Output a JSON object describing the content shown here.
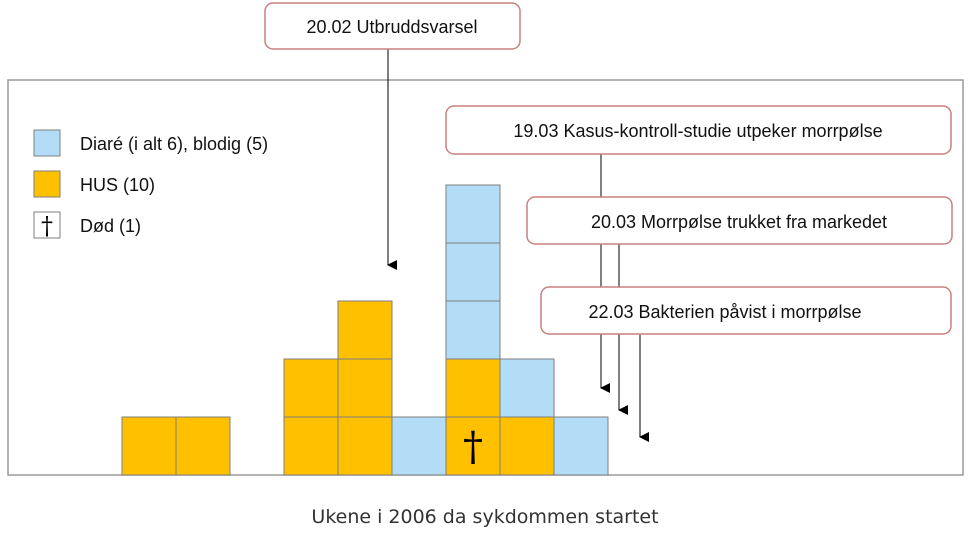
{
  "chart_data": {
    "type": "bar",
    "subtype": "epidemic-curve-stacked-cases",
    "xlabel": "Ukene i 2006 da sykdommen startet",
    "columns": [
      {
        "hus": 1,
        "diare": 0,
        "death_in_hus_index": null
      },
      {
        "hus": 1,
        "diare": 0,
        "death_in_hus_index": null
      },
      {
        "hus": 0,
        "diare": 0,
        "death_in_hus_index": null
      },
      {
        "hus": 2,
        "diare": 0,
        "death_in_hus_index": null
      },
      {
        "hus": 3,
        "diare": 0,
        "death_in_hus_index": null
      },
      {
        "hus": 0,
        "diare": 1,
        "death_in_hus_index": null
      },
      {
        "hus": 2,
        "diare": 3,
        "death_in_hus_index": 0
      },
      {
        "hus": 1,
        "diare": 1,
        "death_in_hus_index": null
      },
      {
        "hus": 0,
        "diare": 1,
        "death_in_hus_index": null
      }
    ],
    "legend": [
      {
        "key": "diare",
        "label": "Diaré (i alt 6), blodig (5)",
        "color": "#b3dcf7"
      },
      {
        "key": "hus",
        "label": "HUS (10)",
        "color": "#ffc000"
      },
      {
        "key": "death",
        "label": "Død (1)",
        "symbol": "†"
      }
    ],
    "legend_placement": "top-left",
    "annotations": [
      {
        "text": "20.02 Utbruddsvarsel",
        "column_boundary": 5
      },
      {
        "text": "19.03 Kasus-kontroll-studie utpeker morrpølse",
        "column_boundary": 9
      },
      {
        "text": "20.03 Morrpølse trukket fra markedet",
        "column_boundary": 9
      },
      {
        "text": "22.03 Bakterien påvist i morrpølse",
        "column_boundary": 9
      }
    ],
    "colors": {
      "diare": "#b3dcf7",
      "hus": "#ffc000",
      "cell_border": "#7f7f7f",
      "annotation_border": "#c9817f"
    },
    "death_symbol": "†"
  }
}
